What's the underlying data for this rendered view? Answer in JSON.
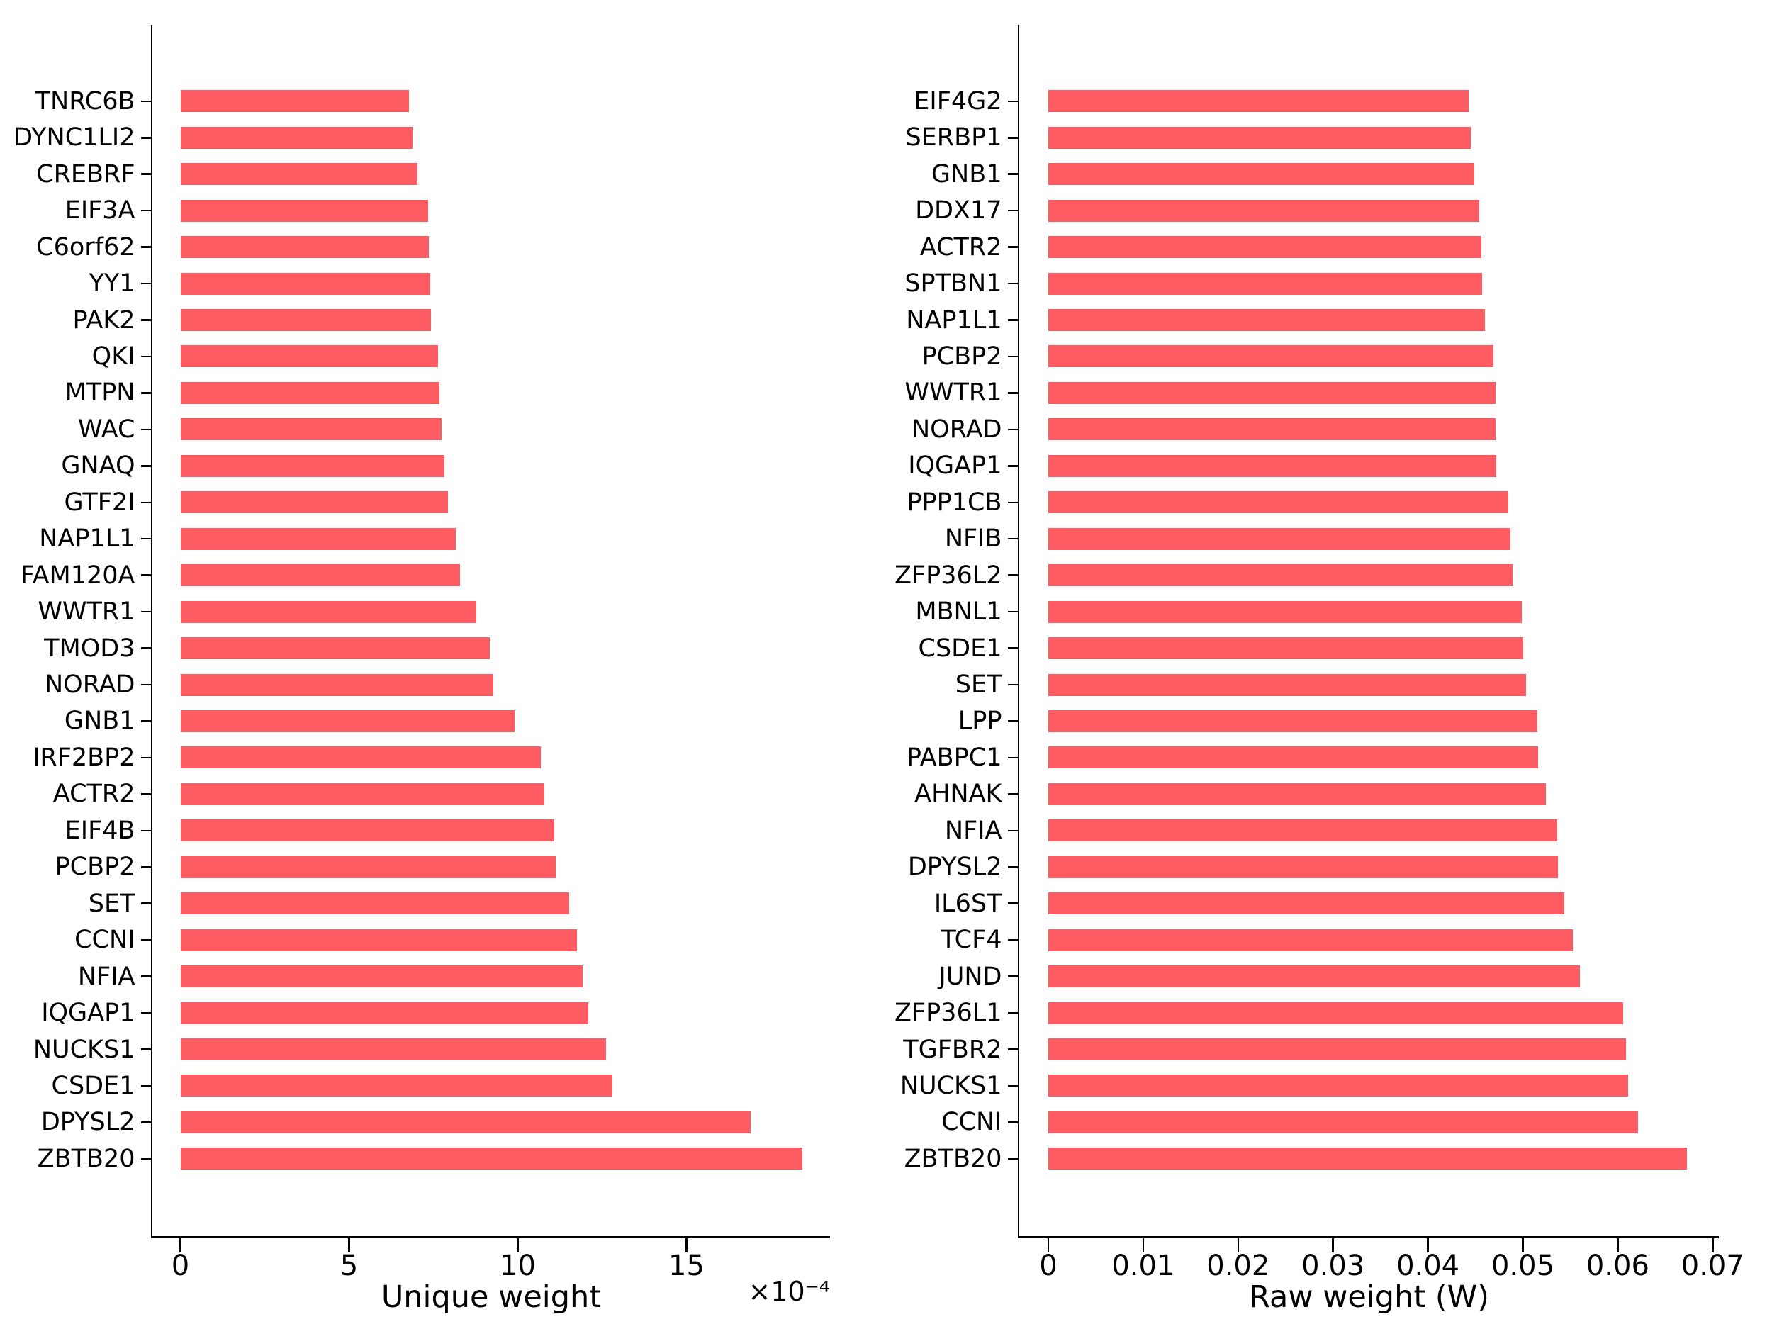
{
  "figure": {
    "background_color": "#ffffff",
    "bar_color": "#FD5C63",
    "axis_color": "#000000",
    "text_color": "#000000"
  },
  "chart_data": [
    {
      "type": "bar",
      "orientation": "horizontal",
      "title": "",
      "xlabel": "Unique weight",
      "x_offset_label": "×10⁻⁴",
      "x_unit_multiplier": 0.0001,
      "grid": false,
      "legend": null,
      "xlim": [
        0,
        19.3
      ],
      "xticks": [
        0,
        5,
        10,
        15
      ],
      "xtick_labels": [
        "0",
        "5",
        "10",
        "15"
      ],
      "categories": [
        "TNRC6B",
        "DYNC1LI2",
        "CREBRF",
        "EIF3A",
        "C6orf62",
        "YY1",
        "PAK2",
        "QKI",
        "MTPN",
        "WAC",
        "GNAQ",
        "GTF2I",
        "NAP1L1",
        "FAM120A",
        "WWTR1",
        "TMOD3",
        "NORAD",
        "GNB1",
        "IRF2BP2",
        "ACTR2",
        "EIF4B",
        "PCBP2",
        "SET",
        "CCNI",
        "NFIA",
        "IQGAP1",
        "NUCKS1",
        "CSDE1",
        "DPYSL2",
        "ZBTB20"
      ],
      "values": [
        6.77,
        6.87,
        7.02,
        7.33,
        7.35,
        7.39,
        7.42,
        7.63,
        7.67,
        7.73,
        7.81,
        7.92,
        8.15,
        8.28,
        8.76,
        9.16,
        9.27,
        9.9,
        10.67,
        10.78,
        11.07,
        11.11,
        11.51,
        11.74,
        11.91,
        12.08,
        12.61,
        12.79,
        16.89,
        18.43
      ],
      "bar_color": "#FD5C63"
    },
    {
      "type": "bar",
      "orientation": "horizontal",
      "title": "",
      "xlabel": "Raw weight (W)",
      "x_offset_label": "",
      "x_unit_multiplier": 1,
      "grid": false,
      "legend": null,
      "xlim": [
        0,
        0.0737
      ],
      "xticks": [
        0,
        0.01,
        0.02,
        0.03,
        0.04,
        0.05,
        0.06,
        0.07
      ],
      "xtick_labels": [
        "0",
        "0.01",
        "0.02",
        "0.03",
        "0.04",
        "0.05",
        "0.06",
        "0.07"
      ],
      "categories": [
        "EIF4G2",
        "SERBP1",
        "GNB1",
        "DDX17",
        "ACTR2",
        "SPTBN1",
        "NAP1L1",
        "PCBP2",
        "WWTR1",
        "NORAD",
        "IQGAP1",
        "PPP1CB",
        "NFIB",
        "ZFP36L2",
        "MBNL1",
        "CSDE1",
        "SET",
        "LPP",
        "PABPC1",
        "AHNAK",
        "NFIA",
        "DPYSL2",
        "IL6ST",
        "TCF4",
        "JUND",
        "ZFP36L1",
        "TGFBR2",
        "NUCKS1",
        "CCNI",
        "ZBTB20"
      ],
      "values": [
        0.0443,
        0.0445,
        0.0449,
        0.0454,
        0.0456,
        0.0457,
        0.046,
        0.0469,
        0.0471,
        0.0471,
        0.0472,
        0.0485,
        0.0487,
        0.0489,
        0.0499,
        0.05,
        0.0503,
        0.0515,
        0.0516,
        0.0524,
        0.0536,
        0.0537,
        0.0544,
        0.0553,
        0.056,
        0.0606,
        0.0609,
        0.0611,
        0.0621,
        0.0673
      ],
      "bar_color": "#FD5C63"
    }
  ]
}
